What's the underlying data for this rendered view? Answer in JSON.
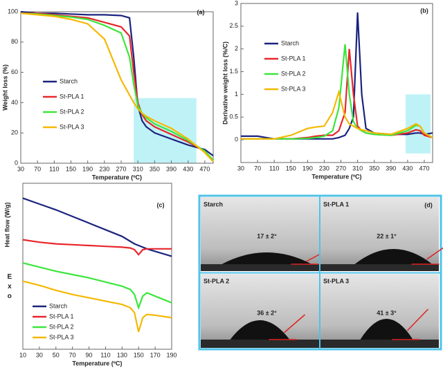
{
  "chart_data": [
    {
      "type": "line",
      "panel_label": "(a)",
      "xlabel": "Temperature (ºC)",
      "ylabel": "Weight loss (%)",
      "x": [
        30,
        70,
        110,
        150,
        190,
        230,
        270,
        290,
        300,
        310,
        320,
        330,
        350,
        390,
        430,
        470,
        490
      ],
      "xlim": [
        30,
        490
      ],
      "ylim": [
        0,
        100
      ],
      "xticks": [
        30,
        70,
        110,
        150,
        190,
        230,
        270,
        310,
        350,
        390,
        430,
        470
      ],
      "yticks": [
        0,
        20,
        40,
        60,
        80,
        100
      ],
      "highlight": {
        "xlim": [
          300,
          450
        ],
        "ylim": [
          0,
          43
        ],
        "color": "#b4f0f4"
      },
      "series": [
        {
          "name": "Starch",
          "color": "#1a237e",
          "values": [
            100,
            99,
            99,
            98.5,
            98,
            98,
            97.5,
            96,
            70,
            38,
            28,
            24,
            20,
            16,
            12,
            9,
            5
          ]
        },
        {
          "name": "St-PLA 1",
          "color": "#e8262b",
          "values": [
            99,
            99,
            98,
            97,
            96,
            93,
            90,
            84,
            60,
            40,
            32,
            28,
            24,
            19,
            14,
            8,
            2
          ]
        },
        {
          "name": "St-PLA 2",
          "color": "#3be63b",
          "values": [
            99,
            98.5,
            97.5,
            96.5,
            95,
            91,
            86,
            70,
            52,
            38,
            33,
            30,
            26,
            21,
            15,
            8,
            2
          ]
        },
        {
          "name": "St-PLA 3",
          "color": "#f5b800",
          "values": [
            99,
            98,
            97,
            95,
            92,
            82,
            55,
            45,
            40,
            36,
            33,
            31,
            28,
            23,
            16,
            7,
            1
          ]
        }
      ]
    },
    {
      "type": "line",
      "panel_label": "(b)",
      "xlabel": "Temperature (ºC)",
      "ylabel": "Derivative weight loss (%/C)",
      "x": [
        30,
        70,
        110,
        150,
        190,
        210,
        230,
        250,
        265,
        280,
        290,
        300,
        310,
        320,
        330,
        350,
        390,
        430,
        450,
        460,
        470,
        490
      ],
      "xlim": [
        30,
        490
      ],
      "ylim": [
        -0.5,
        3
      ],
      "xticks": [
        30,
        70,
        110,
        150,
        190,
        230,
        270,
        310,
        350,
        390,
        430,
        470
      ],
      "yticks": [
        0,
        0.5,
        1,
        1.5,
        2,
        2.5,
        3
      ],
      "highlight": {
        "xlim": [
          425,
          485
        ],
        "ylim": [
          -0.3,
          1
        ],
        "color": "#b4f0f4"
      },
      "series": [
        {
          "name": "Starch",
          "color": "#1a237e",
          "values": [
            0.08,
            0.08,
            0.02,
            0.02,
            0.02,
            0.02,
            0.02,
            0.02,
            0.05,
            0.1,
            0.25,
            0.5,
            2.8,
            1.0,
            0.25,
            0.15,
            0.12,
            0.12,
            0.15,
            0.15,
            0.12,
            0.15
          ]
        },
        {
          "name": "St-PLA 1",
          "color": "#e8262b",
          "values": [
            0.02,
            0.02,
            0.02,
            0.02,
            0.05,
            0.08,
            0.1,
            0.1,
            0.2,
            0.6,
            2.0,
            1.0,
            0.3,
            0.2,
            0.15,
            0.12,
            0.1,
            0.15,
            0.22,
            0.2,
            0.1,
            0.05
          ]
        },
        {
          "name": "St-PLA 2",
          "color": "#3be63b",
          "values": [
            0.02,
            0.02,
            0.02,
            0.02,
            0.03,
            0.05,
            0.08,
            0.2,
            0.7,
            2.1,
            1.0,
            0.4,
            0.25,
            0.2,
            0.15,
            0.12,
            0.1,
            0.2,
            0.32,
            0.3,
            0.15,
            0.05
          ]
        },
        {
          "name": "St-PLA 3",
          "color": "#f5b800",
          "values": [
            0.02,
            0.02,
            0.02,
            0.1,
            0.25,
            0.28,
            0.3,
            0.6,
            1.05,
            0.5,
            0.35,
            0.3,
            0.25,
            0.22,
            0.2,
            0.15,
            0.12,
            0.25,
            0.35,
            0.3,
            0.15,
            0.05
          ]
        }
      ]
    },
    {
      "type": "line",
      "panel_label": "(c)",
      "xlabel": "Temperature (ºC)",
      "ylabel": "Heat flow (W/g)",
      "annotation": "Exo",
      "x": [
        10,
        30,
        50,
        70,
        90,
        110,
        130,
        140,
        145,
        150,
        155,
        160,
        170,
        190
      ],
      "xlim": [
        10,
        190
      ],
      "ylim": [
        0,
        10
      ],
      "xticks": [
        10,
        30,
        50,
        70,
        90,
        110,
        130,
        150,
        170,
        190
      ],
      "series": [
        {
          "name": "Starch",
          "color": "#1a237e",
          "values": [
            9.1,
            8.75,
            8.4,
            8.0,
            7.6,
            7.2,
            6.8,
            6.5,
            6.35,
            6.25,
            6.15,
            6.05,
            5.9,
            5.6
          ]
        },
        {
          "name": "St-PLA 1",
          "color": "#e8262b",
          "values": [
            6.6,
            6.45,
            6.35,
            6.3,
            6.25,
            6.2,
            6.15,
            6.1,
            6.0,
            5.7,
            6.0,
            6.05,
            6.05,
            6.05
          ]
        },
        {
          "name": "St-PLA 2",
          "color": "#3be63b",
          "values": [
            5.2,
            4.95,
            4.7,
            4.5,
            4.3,
            4.05,
            3.8,
            3.6,
            3.3,
            2.5,
            3.2,
            3.4,
            3.2,
            2.8
          ]
        },
        {
          "name": "St-PLA 3",
          "color": "#f5b800",
          "values": [
            4.1,
            3.85,
            3.55,
            3.3,
            3.1,
            2.9,
            2.7,
            2.5,
            2.2,
            1.05,
            1.9,
            2.1,
            2.05,
            1.9
          ]
        }
      ]
    }
  ],
  "photo_panel": {
    "panel_label": "(d)",
    "samples": [
      {
        "name": "Starch",
        "angle": "17 ± 2°"
      },
      {
        "name": "St-PLA 1",
        "angle": "22 ± 1°"
      },
      {
        "name": "St-PLA 2",
        "angle": "36 ± 2°"
      },
      {
        "name": "St-PLA 3",
        "angle": "41 ± 3°"
      }
    ]
  }
}
